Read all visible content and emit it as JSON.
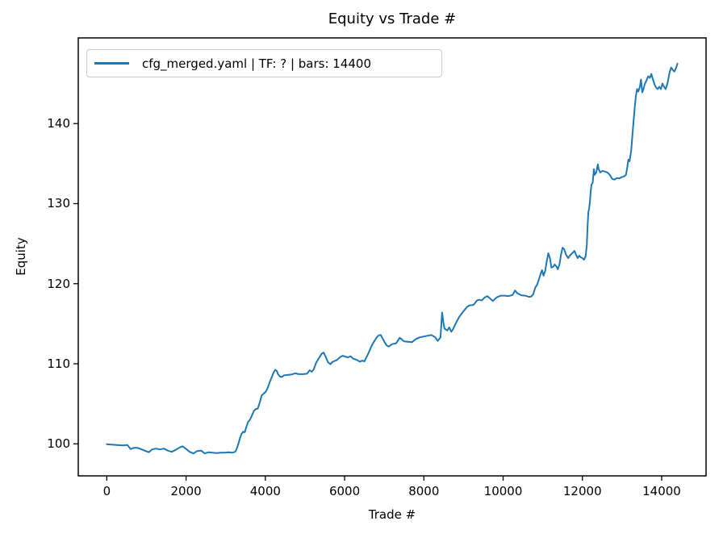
{
  "figure": {
    "title": "Equity vs Trade #",
    "xlabel": "Trade #",
    "ylabel": "Equity",
    "legend_label": "cfg_merged.yaml | TF: ? | bars: 14400"
  },
  "chart_data": {
    "type": "line",
    "title": "Equity vs Trade #",
    "xlabel": "Trade #",
    "ylabel": "Equity",
    "xlim": [
      -720,
      15120
    ],
    "ylim": [
      96.0,
      150.7
    ],
    "xticks": [
      0,
      2000,
      4000,
      6000,
      8000,
      10000,
      12000,
      14000
    ],
    "yticks": [
      100,
      110,
      120,
      130,
      140
    ],
    "grid": false,
    "legend_position": "upper left",
    "line_color": "#1f77b4",
    "axis_color": "#000000",
    "legend_border_color": "#cccccc",
    "series": [
      {
        "name": "cfg_merged.yaml | TF: ? | bars: 14400",
        "points": [
          [
            0,
            99.95
          ],
          [
            120,
            99.9
          ],
          [
            260,
            99.85
          ],
          [
            400,
            99.8
          ],
          [
            520,
            99.85
          ],
          [
            600,
            99.35
          ],
          [
            680,
            99.5
          ],
          [
            780,
            99.5
          ],
          [
            880,
            99.3
          ],
          [
            980,
            99.1
          ],
          [
            1060,
            98.95
          ],
          [
            1140,
            99.3
          ],
          [
            1240,
            99.4
          ],
          [
            1340,
            99.3
          ],
          [
            1440,
            99.4
          ],
          [
            1540,
            99.15
          ],
          [
            1640,
            99.0
          ],
          [
            1740,
            99.25
          ],
          [
            1840,
            99.55
          ],
          [
            1910,
            99.7
          ],
          [
            1990,
            99.4
          ],
          [
            2090,
            99.0
          ],
          [
            2190,
            98.8
          ],
          [
            2280,
            99.1
          ],
          [
            2380,
            99.15
          ],
          [
            2470,
            98.8
          ],
          [
            2570,
            98.95
          ],
          [
            2670,
            98.9
          ],
          [
            2770,
            98.85
          ],
          [
            2870,
            98.9
          ],
          [
            2970,
            98.9
          ],
          [
            3070,
            98.95
          ],
          [
            3170,
            98.9
          ],
          [
            3240,
            99.0
          ],
          [
            3280,
            99.4
          ],
          [
            3320,
            100.0
          ],
          [
            3360,
            100.7
          ],
          [
            3400,
            101.25
          ],
          [
            3440,
            101.5
          ],
          [
            3480,
            101.45
          ],
          [
            3520,
            102.1
          ],
          [
            3560,
            102.7
          ],
          [
            3610,
            103.0
          ],
          [
            3660,
            103.5
          ],
          [
            3710,
            104.1
          ],
          [
            3760,
            104.35
          ],
          [
            3810,
            104.4
          ],
          [
            3860,
            105.2
          ],
          [
            3910,
            106.05
          ],
          [
            3960,
            106.3
          ],
          [
            4010,
            106.5
          ],
          [
            4060,
            107.0
          ],
          [
            4110,
            107.7
          ],
          [
            4160,
            108.3
          ],
          [
            4210,
            108.9
          ],
          [
            4250,
            109.25
          ],
          [
            4290,
            109.1
          ],
          [
            4320,
            108.7
          ],
          [
            4370,
            108.4
          ],
          [
            4420,
            108.35
          ],
          [
            4470,
            108.55
          ],
          [
            4550,
            108.6
          ],
          [
            4650,
            108.65
          ],
          [
            4750,
            108.8
          ],
          [
            4850,
            108.7
          ],
          [
            4950,
            108.7
          ],
          [
            5050,
            108.75
          ],
          [
            5120,
            109.2
          ],
          [
            5170,
            109.0
          ],
          [
            5220,
            109.3
          ],
          [
            5280,
            110.1
          ],
          [
            5340,
            110.6
          ],
          [
            5420,
            111.25
          ],
          [
            5470,
            111.4
          ],
          [
            5520,
            110.9
          ],
          [
            5580,
            110.2
          ],
          [
            5640,
            109.95
          ],
          [
            5700,
            110.25
          ],
          [
            5800,
            110.45
          ],
          [
            5890,
            110.85
          ],
          [
            5950,
            111.0
          ],
          [
            6010,
            110.9
          ],
          [
            6090,
            110.8
          ],
          [
            6150,
            110.95
          ],
          [
            6210,
            110.65
          ],
          [
            6300,
            110.5
          ],
          [
            6390,
            110.25
          ],
          [
            6440,
            110.4
          ],
          [
            6500,
            110.3
          ],
          [
            6560,
            110.9
          ],
          [
            6610,
            111.4
          ],
          [
            6660,
            112.0
          ],
          [
            6710,
            112.5
          ],
          [
            6760,
            112.9
          ],
          [
            6810,
            113.3
          ],
          [
            6860,
            113.55
          ],
          [
            6910,
            113.6
          ],
          [
            6960,
            113.15
          ],
          [
            7010,
            112.7
          ],
          [
            7060,
            112.3
          ],
          [
            7110,
            112.15
          ],
          [
            7200,
            112.45
          ],
          [
            7300,
            112.55
          ],
          [
            7390,
            113.25
          ],
          [
            7440,
            113.05
          ],
          [
            7500,
            112.8
          ],
          [
            7600,
            112.75
          ],
          [
            7700,
            112.7
          ],
          [
            7790,
            113.05
          ],
          [
            7890,
            113.3
          ],
          [
            7990,
            113.4
          ],
          [
            8090,
            113.5
          ],
          [
            8190,
            113.6
          ],
          [
            8290,
            113.3
          ],
          [
            8350,
            112.85
          ],
          [
            8420,
            113.3
          ],
          [
            8460,
            116.4
          ],
          [
            8490,
            115.2
          ],
          [
            8520,
            114.4
          ],
          [
            8590,
            114.15
          ],
          [
            8640,
            114.55
          ],
          [
            8690,
            114.0
          ],
          [
            8740,
            114.35
          ],
          [
            8800,
            115.0
          ],
          [
            8890,
            115.85
          ],
          [
            8990,
            116.5
          ],
          [
            9090,
            117.1
          ],
          [
            9150,
            117.3
          ],
          [
            9250,
            117.35
          ],
          [
            9340,
            117.9
          ],
          [
            9400,
            118.0
          ],
          [
            9460,
            117.9
          ],
          [
            9540,
            118.3
          ],
          [
            9600,
            118.45
          ],
          [
            9660,
            118.2
          ],
          [
            9740,
            117.85
          ],
          [
            9840,
            118.3
          ],
          [
            9940,
            118.5
          ],
          [
            10040,
            118.5
          ],
          [
            10140,
            118.45
          ],
          [
            10240,
            118.6
          ],
          [
            10300,
            119.15
          ],
          [
            10360,
            118.8
          ],
          [
            10460,
            118.55
          ],
          [
            10560,
            118.5
          ],
          [
            10650,
            118.35
          ],
          [
            10710,
            118.4
          ],
          [
            10760,
            118.7
          ],
          [
            10810,
            119.5
          ],
          [
            10860,
            119.9
          ],
          [
            10900,
            120.5
          ],
          [
            10950,
            121.3
          ],
          [
            10980,
            121.7
          ],
          [
            11020,
            121.0
          ],
          [
            11060,
            121.6
          ],
          [
            11100,
            122.8
          ],
          [
            11140,
            123.8
          ],
          [
            11180,
            123.2
          ],
          [
            11220,
            122.0
          ],
          [
            11260,
            122.1
          ],
          [
            11300,
            122.4
          ],
          [
            11340,
            122.2
          ],
          [
            11380,
            121.8
          ],
          [
            11420,
            122.4
          ],
          [
            11460,
            123.6
          ],
          [
            11500,
            124.5
          ],
          [
            11540,
            124.3
          ],
          [
            11580,
            123.7
          ],
          [
            11640,
            123.2
          ],
          [
            11700,
            123.6
          ],
          [
            11760,
            123.9
          ],
          [
            11800,
            124.1
          ],
          [
            11840,
            123.6
          ],
          [
            11880,
            123.2
          ],
          [
            11920,
            123.5
          ],
          [
            11960,
            123.3
          ],
          [
            12000,
            123.2
          ],
          [
            12040,
            123.0
          ],
          [
            12080,
            123.4
          ],
          [
            12110,
            124.8
          ],
          [
            12130,
            127.0
          ],
          [
            12150,
            128.9
          ],
          [
            12170,
            129.4
          ],
          [
            12190,
            130.3
          ],
          [
            12210,
            131.6
          ],
          [
            12230,
            132.4
          ],
          [
            12260,
            132.6
          ],
          [
            12290,
            134.3
          ],
          [
            12310,
            133.6
          ],
          [
            12350,
            133.9
          ],
          [
            12390,
            134.9
          ],
          [
            12410,
            134.3
          ],
          [
            12450,
            133.9
          ],
          [
            12510,
            134.1
          ],
          [
            12570,
            134.0
          ],
          [
            12630,
            133.9
          ],
          [
            12690,
            133.6
          ],
          [
            12750,
            133.1
          ],
          [
            12810,
            133.0
          ],
          [
            12870,
            133.2
          ],
          [
            12930,
            133.15
          ],
          [
            12990,
            133.3
          ],
          [
            13050,
            133.4
          ],
          [
            13100,
            133.6
          ],
          [
            13130,
            134.5
          ],
          [
            13160,
            135.5
          ],
          [
            13190,
            135.3
          ],
          [
            13230,
            136.6
          ],
          [
            13260,
            138.4
          ],
          [
            13290,
            140.2
          ],
          [
            13320,
            142.0
          ],
          [
            13350,
            143.5
          ],
          [
            13380,
            144.3
          ],
          [
            13410,
            144.0
          ],
          [
            13450,
            144.6
          ],
          [
            13480,
            145.5
          ],
          [
            13510,
            143.9
          ],
          [
            13540,
            144.3
          ],
          [
            13570,
            144.9
          ],
          [
            13610,
            145.3
          ],
          [
            13660,
            145.9
          ],
          [
            13700,
            145.7
          ],
          [
            13740,
            146.2
          ],
          [
            13780,
            145.5
          ],
          [
            13820,
            144.9
          ],
          [
            13860,
            144.5
          ],
          [
            13900,
            144.3
          ],
          [
            13940,
            144.6
          ],
          [
            13980,
            144.3
          ],
          [
            14020,
            145.0
          ],
          [
            14060,
            144.6
          ],
          [
            14100,
            144.3
          ],
          [
            14150,
            145.1
          ],
          [
            14200,
            146.4
          ],
          [
            14240,
            147.0
          ],
          [
            14280,
            146.7
          ],
          [
            14320,
            146.5
          ],
          [
            14360,
            146.9
          ],
          [
            14400,
            147.5
          ]
        ]
      }
    ]
  }
}
